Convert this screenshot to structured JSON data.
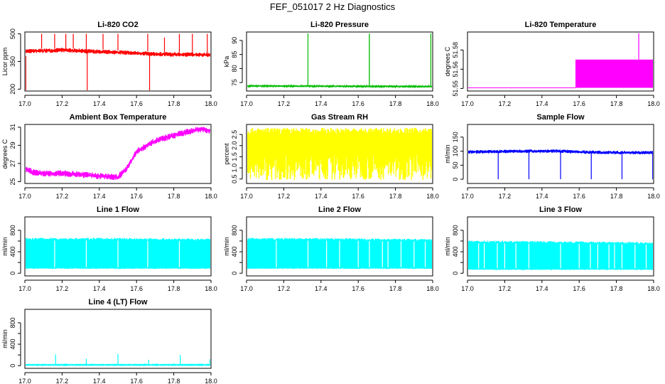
{
  "figure": {
    "title": "FEF_051017  2 Hz Diagnostics"
  },
  "chart_data": [
    {
      "id": "co2",
      "type": "line",
      "title": "Li-820 CO2",
      "ylabel": "Licor ppm",
      "color": "#ff0000",
      "xlim": [
        17.0,
        18.0
      ],
      "ylim": [
        190,
        510
      ],
      "xticks": [
        17.0,
        17.2,
        17.4,
        17.6,
        17.8,
        18.0
      ],
      "xtick_labels": [
        "17.0",
        "17.2",
        "17.4",
        "17.6",
        "17.8",
        "18.0"
      ],
      "yticks": [
        200,
        350,
        500
      ],
      "ytick_labels": [
        "200",
        "350",
        "500"
      ],
      "series": [
        {
          "name": "CO2",
          "kind": "noisy",
          "x": [
            17.0,
            17.1,
            17.2,
            17.3,
            17.4,
            17.5,
            17.6,
            17.7,
            17.8,
            17.9,
            18.0
          ],
          "center": [
            405,
            408,
            412,
            408,
            402,
            400,
            395,
            390,
            388,
            388,
            385
          ],
          "spread": 12
        }
      ],
      "spikes": [
        {
          "x": 17.005,
          "from": 380,
          "to": 195
        },
        {
          "x": 17.09,
          "from": 420,
          "to": 500
        },
        {
          "x": 17.16,
          "from": 420,
          "to": 500
        },
        {
          "x": 17.22,
          "from": 420,
          "to": 500
        },
        {
          "x": 17.26,
          "from": 420,
          "to": 500
        },
        {
          "x": 17.33,
          "from": 410,
          "to": 500
        },
        {
          "x": 17.335,
          "from": 400,
          "to": 190
        },
        {
          "x": 17.42,
          "from": 415,
          "to": 500
        },
        {
          "x": 17.5,
          "from": 410,
          "to": 500
        },
        {
          "x": 17.66,
          "from": 405,
          "to": 500
        },
        {
          "x": 17.67,
          "from": 395,
          "to": 190
        },
        {
          "x": 17.75,
          "from": 400,
          "to": 480
        },
        {
          "x": 17.83,
          "from": 400,
          "to": 500
        },
        {
          "x": 17.9,
          "from": 400,
          "to": 500
        },
        {
          "x": 17.98,
          "from": 395,
          "to": 500
        }
      ]
    },
    {
      "id": "pressure",
      "type": "line",
      "title": "Li-820 Pressure",
      "ylabel": "kPa",
      "color": "#00bb00",
      "xlim": [
        17.0,
        18.0
      ],
      "ylim": [
        72,
        93
      ],
      "xticks": [
        17.0,
        17.2,
        17.4,
        17.6,
        17.8,
        18.0
      ],
      "xtick_labels": [
        "17.0",
        "17.2",
        "17.4",
        "17.6",
        "17.8",
        "18.0"
      ],
      "yticks": [
        75,
        80,
        85,
        90
      ],
      "ytick_labels": [
        "75",
        "80",
        "85",
        "90"
      ],
      "series": [
        {
          "name": "Pressure",
          "kind": "noisy",
          "x": [
            17.0,
            18.0
          ],
          "center": [
            73.8,
            73.6
          ],
          "spread": 0.3
        }
      ],
      "spikes": [
        {
          "x": 17.0,
          "from": 74,
          "to": 91
        },
        {
          "x": 17.33,
          "from": 74,
          "to": 92.5
        },
        {
          "x": 17.66,
          "from": 74,
          "to": 92.5
        },
        {
          "x": 17.66,
          "from": 74,
          "to": 92
        },
        {
          "x": 17.99,
          "from": 74,
          "to": 92.5
        }
      ]
    },
    {
      "id": "licor-temp",
      "type": "line",
      "title": "Li-820 Temperature",
      "ylabel": "degrees C",
      "color": "#ff00ff",
      "xlim": [
        17.0,
        18.0
      ],
      "ylim": [
        51.548,
        51.594
      ],
      "xticks": [
        17.0,
        17.2,
        17.4,
        17.6,
        17.8,
        18.0
      ],
      "xtick_labels": [
        "17.0",
        "17.2",
        "17.4",
        "17.6",
        "17.8",
        "18.0"
      ],
      "yticks": [
        51.55,
        51.565,
        51.58
      ],
      "ytick_labels": [
        "51.55",
        "51.56",
        "51.58"
      ],
      "series": [
        {
          "name": "Temperature",
          "kind": "steps",
          "x": [
            17.0,
            17.58
          ],
          "center": [
            51.5505,
            51.5505
          ],
          "spread": 0
        }
      ],
      "blocks": [
        {
          "x0": 17.58,
          "x1": 18.0,
          "y0": 51.5505,
          "y1": 51.5725
        }
      ],
      "spikes": [
        {
          "x": 17.92,
          "from": 51.5725,
          "to": 51.593
        }
      ]
    },
    {
      "id": "ambient-temp",
      "type": "line",
      "title": "Ambient Box Temperature",
      "ylabel": "degrees C",
      "color": "#ff00ff",
      "xlim": [
        17.0,
        18.0
      ],
      "ylim": [
        24.8,
        31.3
      ],
      "xticks": [
        17.0,
        17.2,
        17.4,
        17.6,
        17.8,
        18.0
      ],
      "xtick_labels": [
        "17.0",
        "17.2",
        "17.4",
        "17.6",
        "17.8",
        "18.0"
      ],
      "yticks": [
        25,
        27,
        29,
        31
      ],
      "ytick_labels": [
        "25",
        "27",
        "29",
        "31"
      ],
      "series": [
        {
          "name": "Ambient",
          "kind": "noisy",
          "x": [
            17.0,
            17.05,
            17.1,
            17.2,
            17.3,
            17.4,
            17.5,
            17.55,
            17.6,
            17.65,
            17.7,
            17.8,
            17.9,
            17.95,
            18.0
          ],
          "center": [
            26.4,
            26.0,
            25.9,
            25.9,
            25.8,
            25.6,
            25.5,
            26.5,
            28.3,
            28.9,
            29.5,
            30.1,
            30.6,
            30.8,
            30.6
          ],
          "spread": 0.35
        }
      ],
      "spikes": []
    },
    {
      "id": "gas-rh",
      "type": "line",
      "title": "Gas Stream RH",
      "ylabel": "percent",
      "color": "#ffff00",
      "xlim": [
        17.0,
        18.0
      ],
      "ylim": [
        0.3,
        2.95
      ],
      "xticks": [
        17.0,
        17.2,
        17.4,
        17.6,
        17.8,
        18.0
      ],
      "xtick_labels": [
        "17.0",
        "17.2",
        "17.4",
        "17.6",
        "17.8",
        "18.0"
      ],
      "yticks": [
        0.5,
        1.0,
        1.5,
        2.0,
        2.5
      ],
      "ytick_labels": [
        "0.5",
        "1.0",
        "1.5",
        "2.0",
        "2.5"
      ],
      "series": [
        {
          "name": "RH",
          "kind": "band",
          "x": [
            17.0,
            18.0
          ],
          "center": [
            2.65,
            2.65
          ],
          "spread": 0.15,
          "dips_to": [
            0.45,
            1.6
          ]
        }
      ],
      "spikes": []
    },
    {
      "id": "sample-flow",
      "type": "line",
      "title": "Sample Flow",
      "ylabel": "ml/min",
      "color": "#0000ff",
      "xlim": [
        17.0,
        18.0
      ],
      "ylim": [
        -15,
        195
      ],
      "xticks": [
        17.0,
        17.2,
        17.4,
        17.6,
        17.8,
        18.0
      ],
      "xtick_labels": [
        "17.0",
        "17.2",
        "17.4",
        "17.6",
        "17.8",
        "18.0"
      ],
      "yticks": [
        0,
        50,
        100,
        150
      ],
      "ytick_labels": [
        "0",
        "50",
        "100",
        "150"
      ],
      "series": [
        {
          "name": "Sample",
          "kind": "noisy",
          "x": [
            17.0,
            17.3,
            17.5,
            17.6,
            17.8,
            18.0
          ],
          "center": [
            97,
            100,
            100,
            97,
            95,
            95
          ],
          "spread": 6
        }
      ],
      "spikes": [
        {
          "x": 17.0,
          "from": 95,
          "to": 65
        },
        {
          "x": 17.165,
          "from": 95,
          "to": 0
        },
        {
          "x": 17.33,
          "from": 95,
          "to": 0
        },
        {
          "x": 17.5,
          "from": 95,
          "to": 0
        },
        {
          "x": 17.665,
          "from": 95,
          "to": 0
        },
        {
          "x": 17.83,
          "from": 95,
          "to": 0
        },
        {
          "x": 17.995,
          "from": 95,
          "to": 0
        }
      ]
    },
    {
      "id": "line1-flow",
      "type": "line",
      "title": "Line 1 Flow",
      "ylabel": "ml/min",
      "color": "#00ffff",
      "xlim": [
        17.0,
        18.0
      ],
      "ylim": [
        -50,
        1050
      ],
      "xticks": [
        17.0,
        17.2,
        17.4,
        17.6,
        17.8,
        18.0
      ],
      "xtick_labels": [
        "17.0",
        "17.2",
        "17.4",
        "17.6",
        "17.8",
        "18.0"
      ],
      "yticks": [
        0,
        200,
        400,
        600,
        800
      ],
      "ytick_labels": [
        "0",
        "400",
        "800"
      ],
      "ytick_label_values": [
        0,
        400,
        800
      ],
      "series": [
        {
          "name": "Line 1",
          "kind": "band",
          "x": [
            17.0,
            17.5,
            18.0
          ],
          "center": [
            640,
            640,
            625
          ],
          "spread": 20,
          "bottom": 80
        }
      ],
      "gaps": [
        17.16,
        17.33,
        17.5,
        17.66,
        17.83
      ],
      "spikes": []
    },
    {
      "id": "line2-flow",
      "type": "line",
      "title": "Line 2 Flow",
      "ylabel": "ml/min",
      "color": "#00ffff",
      "xlim": [
        17.0,
        18.0
      ],
      "ylim": [
        -50,
        1050
      ],
      "xticks": [
        17.0,
        17.2,
        17.4,
        17.6,
        17.8,
        18.0
      ],
      "xtick_labels": [
        "17.0",
        "17.2",
        "17.4",
        "17.6",
        "17.8",
        "18.0"
      ],
      "yticks": [
        0,
        200,
        400,
        600,
        800
      ],
      "ytick_labels": [
        "0",
        "400",
        "800"
      ],
      "ytick_label_values": [
        0,
        400,
        800
      ],
      "series": [
        {
          "name": "Line 2",
          "kind": "band",
          "x": [
            17.0,
            17.5,
            18.0
          ],
          "center": [
            640,
            635,
            620
          ],
          "spread": 20,
          "bottom": 80
        }
      ],
      "gaps": [
        17.16,
        17.33,
        17.43,
        17.5,
        17.6,
        17.66,
        17.73,
        17.76,
        17.83,
        17.9,
        17.96
      ],
      "spikes": []
    },
    {
      "id": "line3-flow",
      "type": "line",
      "title": "Line 3 Flow",
      "ylabel": "ml/min",
      "color": "#00ffff",
      "xlim": [
        17.0,
        18.0
      ],
      "ylim": [
        -50,
        1050
      ],
      "xticks": [
        17.0,
        17.2,
        17.4,
        17.6,
        17.8,
        18.0
      ],
      "xtick_labels": [
        "17.0",
        "17.2",
        "17.4",
        "17.6",
        "17.8",
        "18.0"
      ],
      "yticks": [
        0,
        200,
        400,
        600,
        800
      ],
      "ytick_labels": [
        "0",
        "400",
        "800"
      ],
      "ytick_label_values": [
        0,
        400,
        800
      ],
      "series": [
        {
          "name": "Line 3",
          "kind": "band",
          "x": [
            17.0,
            17.5,
            18.0
          ],
          "center": [
            590,
            580,
            560
          ],
          "spread": 20,
          "bottom": 60
        }
      ],
      "gaps": [
        17.06,
        17.09,
        17.16,
        17.2,
        17.26,
        17.33,
        17.5,
        17.6,
        17.66,
        17.7,
        17.76,
        17.79,
        17.83,
        17.9,
        17.96
      ],
      "spikes": []
    },
    {
      "id": "line4-flow",
      "type": "line",
      "title": "Line 4 (LT) Flow",
      "ylabel": "ml/min",
      "color": "#00ffff",
      "xlim": [
        17.0,
        18.0
      ],
      "ylim": [
        -50,
        1050
      ],
      "xticks": [
        17.0,
        17.2,
        17.4,
        17.6,
        17.8,
        18.0
      ],
      "xtick_labels": [
        "17.0",
        "17.2",
        "17.4",
        "17.6",
        "17.8",
        "18.0"
      ],
      "yticks": [
        0,
        200,
        400,
        600,
        800
      ],
      "ytick_labels": [
        "0",
        "400",
        "800"
      ],
      "ytick_label_values": [
        0,
        400,
        800
      ],
      "series": [
        {
          "name": "Line 4",
          "kind": "noisy",
          "x": [
            17.0,
            18.0
          ],
          "center": [
            15,
            15
          ],
          "spread": 6
        }
      ],
      "spikes": [
        {
          "x": 17.165,
          "from": 15,
          "to": 210
        },
        {
          "x": 17.33,
          "from": 15,
          "to": 130
        },
        {
          "x": 17.5,
          "from": 15,
          "to": 220
        },
        {
          "x": 17.665,
          "from": 15,
          "to": 110
        },
        {
          "x": 17.835,
          "from": 15,
          "to": 200
        },
        {
          "x": 17.995,
          "from": 15,
          "to": 120
        }
      ]
    }
  ]
}
